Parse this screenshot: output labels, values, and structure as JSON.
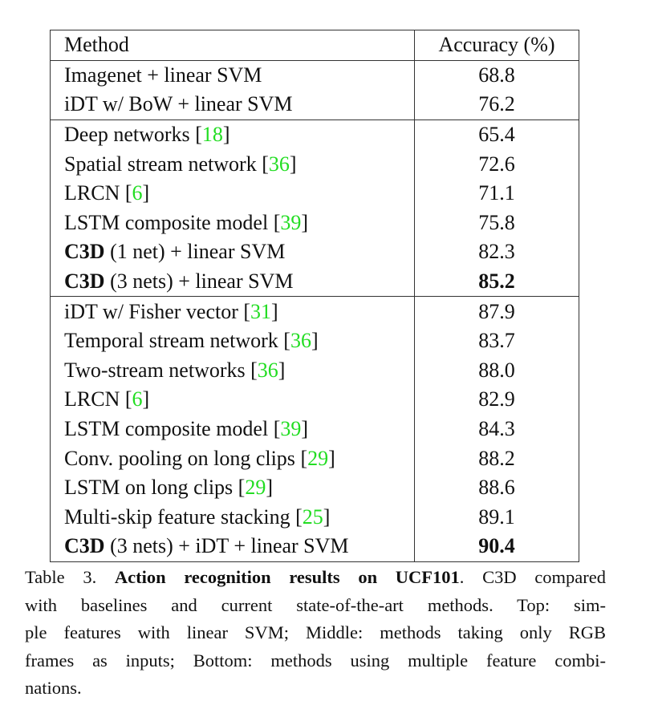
{
  "table": {
    "headers": [
      "Method",
      "Accuracy (%)"
    ],
    "rows": [
      {
        "bold": "",
        "text": "Imagenet + linear SVM",
        "ref": "",
        "value": "68.8",
        "value_bold": false,
        "group_start": true
      },
      {
        "bold": "",
        "text": "iDT w/ BoW + linear SVM",
        "ref": "",
        "value": "76.2",
        "value_bold": false
      },
      {
        "bold": "",
        "text": "Deep networks ",
        "ref": "18",
        "value": "65.4",
        "value_bold": false,
        "group_start": true
      },
      {
        "bold": "",
        "text": "Spatial stream network ",
        "ref": "36",
        "value": "72.6",
        "value_bold": false
      },
      {
        "bold": "",
        "text": "LRCN ",
        "ref": "6",
        "value": "71.1",
        "value_bold": false
      },
      {
        "bold": "",
        "text": "LSTM composite model ",
        "ref": "39",
        "value": "75.8",
        "value_bold": false
      },
      {
        "bold": "C3D",
        "text": " (1 net) + linear SVM",
        "ref": "",
        "value": "82.3",
        "value_bold": false
      },
      {
        "bold": "C3D",
        "text": " (3 nets) + linear SVM",
        "ref": "",
        "value": "85.2",
        "value_bold": true
      },
      {
        "bold": "",
        "text": "iDT w/ Fisher vector ",
        "ref": "31",
        "value": "87.9",
        "value_bold": false,
        "group_start": true
      },
      {
        "bold": "",
        "text": "Temporal stream network ",
        "ref": "36",
        "value": "83.7",
        "value_bold": false
      },
      {
        "bold": "",
        "text": "Two-stream networks ",
        "ref": "36",
        "value": "88.0",
        "value_bold": false
      },
      {
        "bold": "",
        "text": "LRCN ",
        "ref": "6",
        "value": "82.9",
        "value_bold": false
      },
      {
        "bold": "",
        "text": "LSTM composite model ",
        "ref": "39",
        "value": "84.3",
        "value_bold": false
      },
      {
        "bold": "",
        "text": "Conv. pooling on long clips ",
        "ref": "29",
        "value": "88.2",
        "value_bold": false
      },
      {
        "bold": "",
        "text": "LSTM on long clips ",
        "ref": "29",
        "value": "88.6",
        "value_bold": false
      },
      {
        "bold": "",
        "text": "Multi-skip feature stacking ",
        "ref": "25",
        "value": "89.1",
        "value_bold": false
      },
      {
        "bold": "C3D",
        "text": " (3 nets) + iDT + linear SVM",
        "ref": "",
        "value": "90.4",
        "value_bold": true
      }
    ],
    "ref_color": "#22dd22"
  },
  "caption": {
    "label": "Table 3. ",
    "title": "Action recognition results on UCF101",
    "line1_rest": ". C3D compared",
    "lines": [
      "with baselines and current state-of-the-art methods.  Top: sim-",
      "ple features with linear SVM; Middle: methods taking only RGB",
      "frames as inputs; Bottom: methods using multiple feature combi-",
      "nations."
    ]
  }
}
